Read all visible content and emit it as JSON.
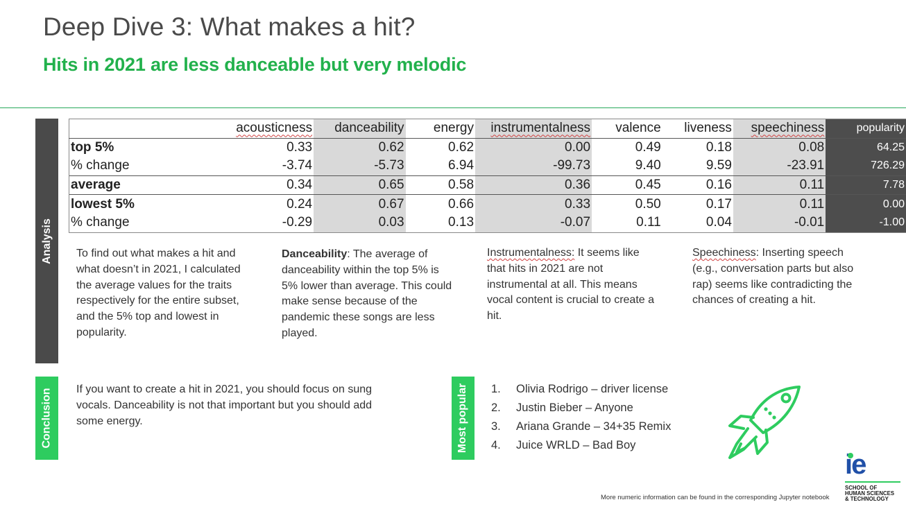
{
  "header": {
    "title": "Deep Dive 3: What makes a hit?",
    "subtitle": "Hits in 2021 are less danceable but very melodic"
  },
  "sections": {
    "analysis_label": "Analysis",
    "conclusion_label": "Conclusion",
    "popular_label": "Most popular"
  },
  "table": {
    "columns": [
      "acousticness",
      "danceability",
      "energy",
      "instrumentalness",
      "valence",
      "liveness",
      "speechiness",
      "popularity"
    ],
    "rows": [
      {
        "label": "top 5%",
        "values": [
          "0.33",
          "0.62",
          "0.62",
          "0.00",
          "0.49",
          "0.18",
          "0.08",
          "64.25"
        ]
      },
      {
        "label": "% change",
        "values": [
          "-3.74",
          "-5.73",
          "6.94",
          "-99.73",
          "9.40",
          "9.59",
          "-23.91",
          "726.29"
        ]
      },
      {
        "label": "average",
        "values": [
          "0.34",
          "0.65",
          "0.58",
          "0.36",
          "0.45",
          "0.16",
          "0.11",
          "7.78"
        ]
      },
      {
        "label": "lowest 5%",
        "values": [
          "0.24",
          "0.67",
          "0.66",
          "0.33",
          "0.50",
          "0.17",
          "0.11",
          "0.00"
        ]
      },
      {
        "label": "% change",
        "values": [
          "-0.29",
          "0.03",
          "0.13",
          "-0.07",
          "0.11",
          "0.04",
          "-0.01",
          "-1.00"
        ]
      }
    ]
  },
  "analysis": {
    "p1": "To find out what makes a hit and what doesn’t in 2021, I calculated the average values for the traits respectively for the entire subset, and the 5% top and lowest in popularity.",
    "p2_title": "Danceability",
    "p2_body": ": The average of danceability  within the top 5% is 5% lower than average. This could make sense because of the pandemic these songs are less played.",
    "p3_title": "Instrumentalness:",
    "p3_body": " It seems like that hits in 2021 are not instrumental at all. This means vocal content is crucial to create a hit.",
    "p4_title": "Speechiness",
    "p4_body": ": Inserting speech (e.g., conversation parts but also rap) seems like contradicting the chances of creating a hit."
  },
  "conclusion": {
    "text": "If you want to create a hit in 2021, you should focus on sung vocals. Danceability is not that important but you should add some energy."
  },
  "most_popular": [
    {
      "index": "1.",
      "text": "Olivia Rodrigo – driver license"
    },
    {
      "index": "2.",
      "text": "Justin Bieber – Anyone"
    },
    {
      "index": "3.",
      "text": "Ariana Grande – 34+35 Remix"
    },
    {
      "index": "4.",
      "text": "Juice WRLD – Bad Boy"
    }
  ],
  "logo": {
    "mark": "ie",
    "line1": "SCHOOL OF",
    "line2": "HUMAN SCIENCES",
    "line3": "& TECHNOLOGY"
  },
  "footnote": "More numeric information can be found in the corresponding Jupyter notebook",
  "colors": {
    "accent_green": "#22b14c",
    "dark_gray": "#4a4a4a",
    "table_shade": "#d9d9d9",
    "logo_blue": "#2050a8"
  },
  "icons": {
    "rocket": "rocket-icon"
  }
}
